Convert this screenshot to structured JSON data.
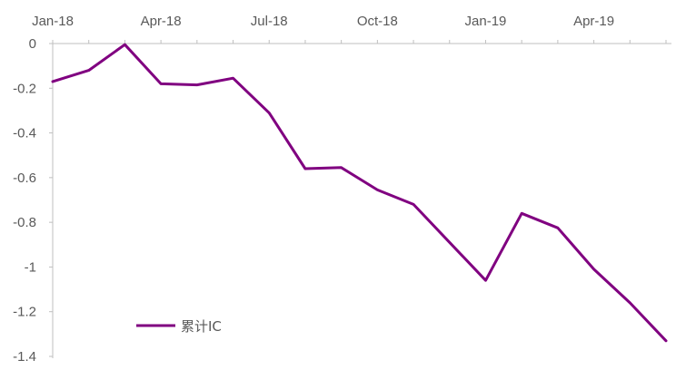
{
  "chart_data": {
    "type": "line",
    "title": "",
    "xlabel": "",
    "ylabel": "",
    "x_tick_labels": [
      "Jan-18",
      "Apr-18",
      "Jul-18",
      "Oct-18",
      "Jan-19",
      "Apr-19"
    ],
    "x": [
      "Jan-18",
      "Feb-18",
      "Mar-18",
      "Apr-18",
      "May-18",
      "Jun-18",
      "Jul-18",
      "Aug-18",
      "Sep-18",
      "Oct-18",
      "Nov-18",
      "Dec-18",
      "Jan-19",
      "Feb-19",
      "Mar-19",
      "Apr-19",
      "May-19",
      "Jun-19"
    ],
    "y_ticks": [
      0,
      -0.2,
      -0.4,
      -0.6,
      -0.8,
      -1,
      -1.2,
      -1.4
    ],
    "y_tick_labels": [
      "0",
      "-0.2",
      "-0.4",
      "-0.6",
      "-0.8",
      "-1",
      "-1.2",
      "-1.4"
    ],
    "ylim": [
      -1.4,
      0
    ],
    "x_axis_position": "top",
    "grid": false,
    "legend_position": "bottom-left",
    "series": [
      {
        "name": "累计IC",
        "color": "#800080",
        "values": [
          -0.17,
          -0.12,
          -0.005,
          -0.18,
          -0.185,
          -0.155,
          -0.31,
          -0.56,
          -0.555,
          -0.655,
          -0.72,
          -0.89,
          -1.06,
          -0.76,
          -0.825,
          -1.01,
          -1.16,
          -1.33
        ]
      }
    ]
  }
}
